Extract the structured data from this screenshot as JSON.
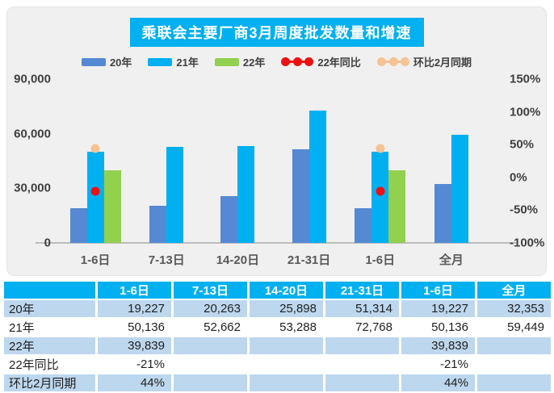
{
  "title": "乘联会主要厂商3月周度批发数量和增速",
  "colors": {
    "accent_cyan": "#00B0F0",
    "bar_2020": "#5589D3",
    "bar_2021": "#00B0F0",
    "bar_2022": "#92D050",
    "yoy_red": "#EE1111",
    "mom_peach": "#F6C394",
    "row_stripe_blue": "#BDD7EE",
    "panel_bg": "#F0F0F0"
  },
  "legend": [
    {
      "key": "y2020",
      "label": "20年",
      "marker": "bar",
      "color": "#5589D3"
    },
    {
      "key": "y2021",
      "label": "21年",
      "marker": "bar",
      "color": "#00B0F0"
    },
    {
      "key": "y2022",
      "label": "22年",
      "marker": "bar",
      "color": "#92D050"
    },
    {
      "key": "yoy",
      "label": "22年同比",
      "marker": "line",
      "color": "#EE1111"
    },
    {
      "key": "mom",
      "label": "环比2月同期",
      "marker": "line",
      "color": "#F6C394"
    }
  ],
  "chart_data": {
    "type": "bar",
    "categories": [
      "1-6日",
      "7-13日",
      "14-20日",
      "21-31日",
      "1-6日",
      "全月"
    ],
    "series": [
      {
        "key": "y2020",
        "name": "20年",
        "type": "bar",
        "axis": "left",
        "color": "#5589D3",
        "values": [
          19227,
          20263,
          25898,
          51314,
          19227,
          32353
        ]
      },
      {
        "key": "y2021",
        "name": "21年",
        "type": "bar",
        "axis": "left",
        "color": "#00B0F0",
        "values": [
          50136,
          52662,
          53288,
          72768,
          50136,
          59449
        ]
      },
      {
        "key": "y2022",
        "name": "22年",
        "type": "bar",
        "axis": "left",
        "color": "#92D050",
        "values": [
          39839,
          null,
          null,
          null,
          39839,
          null
        ]
      },
      {
        "key": "yoy",
        "name": "22年同比",
        "type": "point",
        "axis": "right",
        "color": "#EE1111",
        "values": [
          -21,
          null,
          null,
          null,
          -21,
          null
        ]
      },
      {
        "key": "mom",
        "name": "环比2月同期",
        "type": "point",
        "axis": "right",
        "color": "#F6C394",
        "values": [
          44,
          null,
          null,
          null,
          44,
          null
        ]
      }
    ],
    "left_axis": {
      "min": 0,
      "max": 90000,
      "ticks": [
        {
          "value": 90000,
          "label": "90,000"
        },
        {
          "value": 60000,
          "label": "60,000"
        },
        {
          "value": 30000,
          "label": "30,000"
        },
        {
          "value": 0,
          "label": "0"
        }
      ]
    },
    "right_axis": {
      "min": -100,
      "max": 150,
      "ticks": [
        {
          "value": 150,
          "label": "150%"
        },
        {
          "value": 100,
          "label": "100%"
        },
        {
          "value": 50,
          "label": "50%"
        },
        {
          "value": 0,
          "label": "0%"
        },
        {
          "value": -50,
          "label": "-50%"
        },
        {
          "value": -100,
          "label": "-100%"
        }
      ]
    },
    "grid": false,
    "legend_position": "top"
  },
  "table": {
    "headers": [
      "",
      "1-6日",
      "7-13日",
      "14-20日",
      "21-31日",
      "1-6日",
      "全月"
    ],
    "rows": [
      {
        "label": "20年",
        "values": [
          "19,227",
          "20,263",
          "25,898",
          "51,314",
          "19,227",
          "32,353"
        ]
      },
      {
        "label": "21年",
        "values": [
          "50,136",
          "52,662",
          "53,288",
          "72,768",
          "50,136",
          "59,449"
        ]
      },
      {
        "label": "22年",
        "values": [
          "39,839",
          "",
          "",
          "",
          "39,839",
          ""
        ]
      },
      {
        "label": "22年同比",
        "values": [
          "-21%",
          "",
          "",
          "",
          "-21%",
          ""
        ]
      },
      {
        "label": "环比2月同期",
        "values": [
          "44%",
          "",
          "",
          "",
          "44%",
          ""
        ]
      }
    ]
  }
}
